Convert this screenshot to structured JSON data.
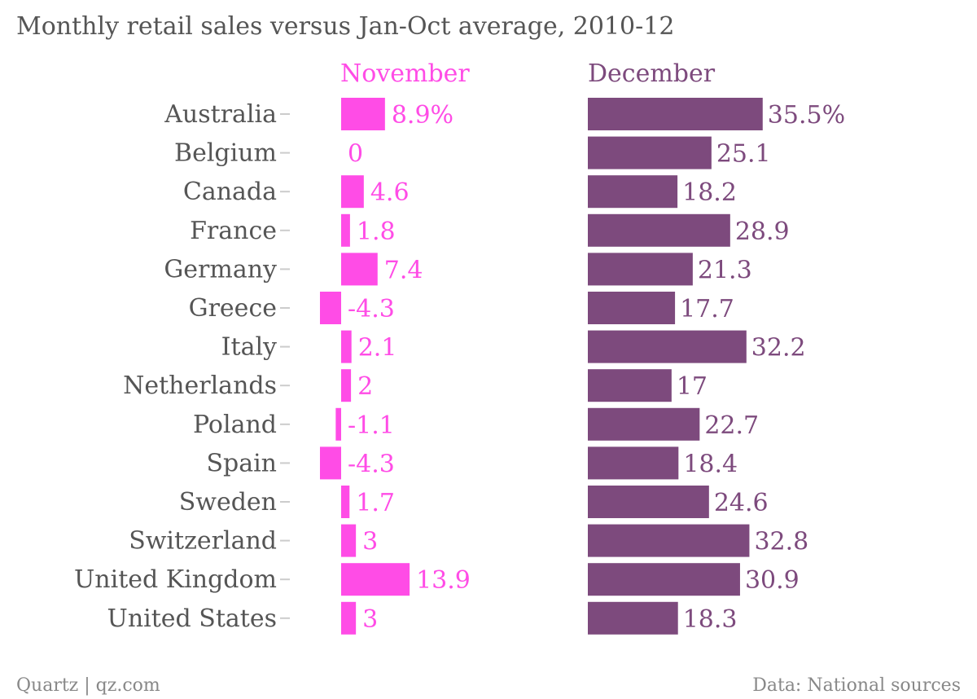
{
  "chart_data": {
    "type": "bar",
    "title": "Monthly retail sales versus Jan-Oct average, 2010-12",
    "categories": [
      "Australia",
      "Belgium",
      "Canada",
      "France",
      "Germany",
      "Greece",
      "Italy",
      "Netherlands",
      "Poland",
      "Spain",
      "Sweden",
      "Switzerland",
      "United Kingdom",
      "United States"
    ],
    "series": [
      {
        "name": "November",
        "color": "#ff4ce6",
        "values": [
          8.9,
          0,
          4.6,
          1.8,
          7.4,
          -4.3,
          2.1,
          2,
          -1.1,
          -4.3,
          1.7,
          3,
          13.9,
          3
        ],
        "labels": [
          "8.9%",
          "0",
          "4.6",
          "1.8",
          "7.4",
          "-4.3",
          "2.1",
          "2",
          "-1.1",
          "-4.3",
          "1.7",
          "3",
          "13.9",
          "3"
        ]
      },
      {
        "name": "December",
        "color": "#7d4a7d",
        "values": [
          35.5,
          25.1,
          18.2,
          28.9,
          21.3,
          17.7,
          32.2,
          17,
          22.7,
          18.4,
          24.6,
          32.8,
          30.9,
          18.3
        ],
        "labels": [
          "35.5%",
          "25.1",
          "18.2",
          "28.9",
          "21.3",
          "17.7",
          "32.2",
          "17",
          "22.7",
          "18.4",
          "24.6",
          "32.8",
          "30.9",
          "18.3"
        ]
      }
    ],
    "legend": "column headers",
    "grid": false
  },
  "footer": {
    "source_left": "Quartz | qz.com",
    "source_right": "Data: National sources"
  },
  "colors": {
    "text": "#555555",
    "tick": "#cccccc",
    "footer": "#888888"
  }
}
